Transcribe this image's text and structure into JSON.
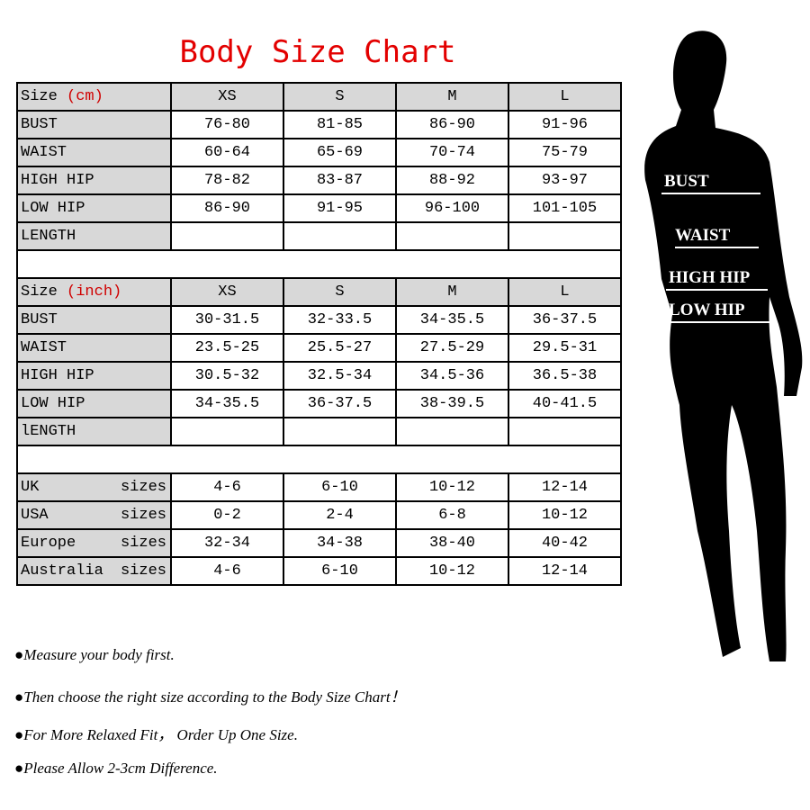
{
  "title": "Body Size Chart",
  "cm_table": {
    "size_label": "Size",
    "unit": "(cm)",
    "sizes": [
      "XS",
      "S",
      "M",
      "L"
    ],
    "rows": [
      {
        "label": "BUST",
        "values": [
          "76-80",
          "81-85",
          "86-90",
          "91-96"
        ]
      },
      {
        "label": "WAIST",
        "values": [
          "60-64",
          "65-69",
          "70-74",
          "75-79"
        ]
      },
      {
        "label": "HIGH HIP",
        "values": [
          "78-82",
          "83-87",
          "88-92",
          "93-97"
        ]
      },
      {
        "label": "LOW HIP",
        "values": [
          "86-90",
          "91-95",
          "96-100",
          "101-105"
        ]
      },
      {
        "label": "LENGTH",
        "values": [
          "",
          "",
          "",
          ""
        ]
      }
    ]
  },
  "inch_table": {
    "size_label": "Size",
    "unit": "(inch)",
    "sizes": [
      "XS",
      "S",
      "M",
      "L"
    ],
    "rows": [
      {
        "label": "BUST",
        "values": [
          "30-31.5",
          "32-33.5",
          "34-35.5",
          "36-37.5"
        ]
      },
      {
        "label": "WAIST",
        "values": [
          "23.5-25",
          "25.5-27",
          "27.5-29",
          "29.5-31"
        ]
      },
      {
        "label": "HIGH HIP",
        "values": [
          "30.5-32",
          "32.5-34",
          "34.5-36",
          "36.5-38"
        ]
      },
      {
        "label": "LOW HIP",
        "values": [
          "34-35.5",
          "36-37.5",
          "38-39.5",
          "40-41.5"
        ]
      },
      {
        "label": "lENGTH",
        "values": [
          "",
          "",
          "",
          ""
        ]
      }
    ]
  },
  "conversion": {
    "suffix": "sizes",
    "rows": [
      {
        "label": "UK",
        "values": [
          "4-6",
          "6-10",
          "10-12",
          "12-14"
        ]
      },
      {
        "label": "USA",
        "values": [
          "0-2",
          "2-4",
          "6-8",
          "10-12"
        ]
      },
      {
        "label": "Europe",
        "values": [
          "32-34",
          "34-38",
          "38-40",
          "40-42"
        ]
      },
      {
        "label": "Australia",
        "values": [
          "4-6",
          "6-10",
          "10-12",
          "12-14"
        ]
      }
    ]
  },
  "notes": [
    "Measure your body first.",
    "Then choose the right size according to the Body Size Chart！",
    "For More Relaxed Fit， Order Up One Size.",
    "Please Allow 2-3cm Difference."
  ],
  "bullet": "●",
  "figure_labels": {
    "bust": "BUST",
    "waist": "WAIST",
    "high_hip": "HIGH HIP",
    "low_hip": "LOW HIP"
  }
}
